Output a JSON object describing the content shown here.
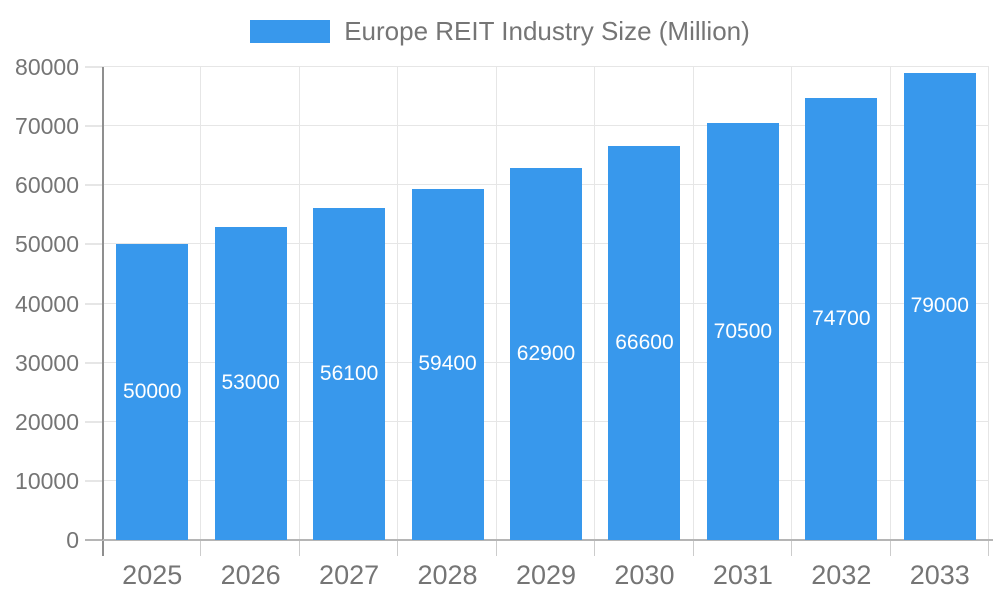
{
  "legend": {
    "label": "Europe REIT Industry Size (Million)"
  },
  "chart_data": {
    "type": "bar",
    "title": "Europe REIT Industry Size (Million)",
    "xlabel": "",
    "ylabel": "",
    "categories": [
      "2025",
      "2026",
      "2027",
      "2028",
      "2029",
      "2030",
      "2031",
      "2032",
      "2033"
    ],
    "values": [
      50000,
      53000,
      56100,
      59400,
      62900,
      66600,
      70500,
      74700,
      79000
    ],
    "value_labels": [
      "50000",
      "53000",
      "56100",
      "59400",
      "62900",
      "66600",
      "70500",
      "74700",
      "79000"
    ],
    "ytick_labels": [
      "0",
      "10000",
      "20000",
      "30000",
      "40000",
      "50000",
      "60000",
      "70000",
      "80000"
    ],
    "ylim": [
      0,
      80000
    ],
    "ytick_step": 10000,
    "grid": true,
    "legend_position": "top",
    "colors": {
      "bar": "#3898EC",
      "value_label_text": "#FFFFFF",
      "axis_text": "#757575",
      "gridline": "#E6E6E6",
      "y_axis_line": "#8F8F8F",
      "x_axis_line": "#B5B5B5",
      "minor_tick": "#CCCCCC"
    }
  }
}
